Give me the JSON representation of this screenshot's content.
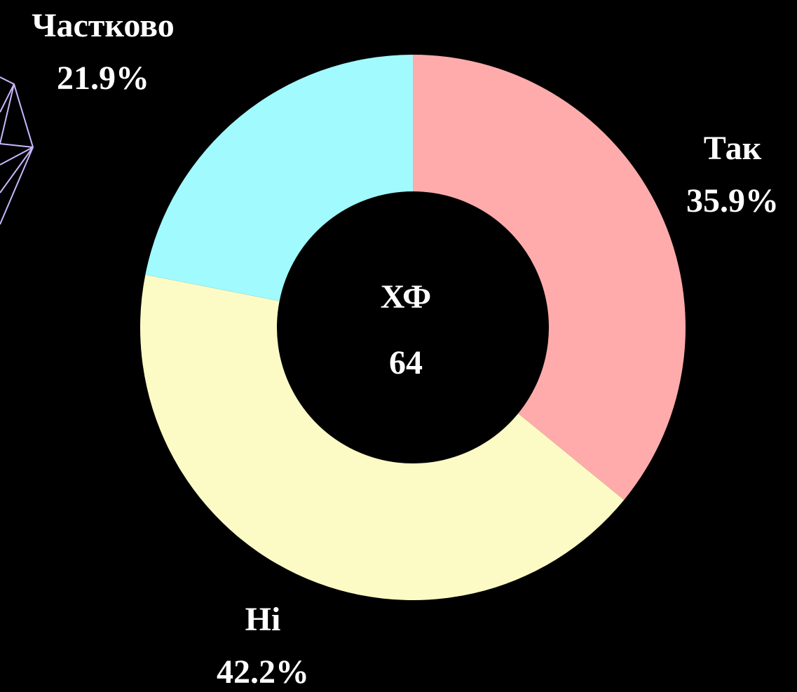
{
  "chart_data": {
    "type": "donut",
    "categories": [
      "Так",
      "Ні",
      "Частково"
    ],
    "values": [
      35.9,
      42.2,
      21.9
    ],
    "value_labels": [
      "35.9%",
      "42.2%",
      "21.9%"
    ],
    "colors": [
      "#ffabab",
      "#fdfbc5",
      "#a0fafe"
    ],
    "center_label": "ХФ",
    "center_value": 64
  }
}
